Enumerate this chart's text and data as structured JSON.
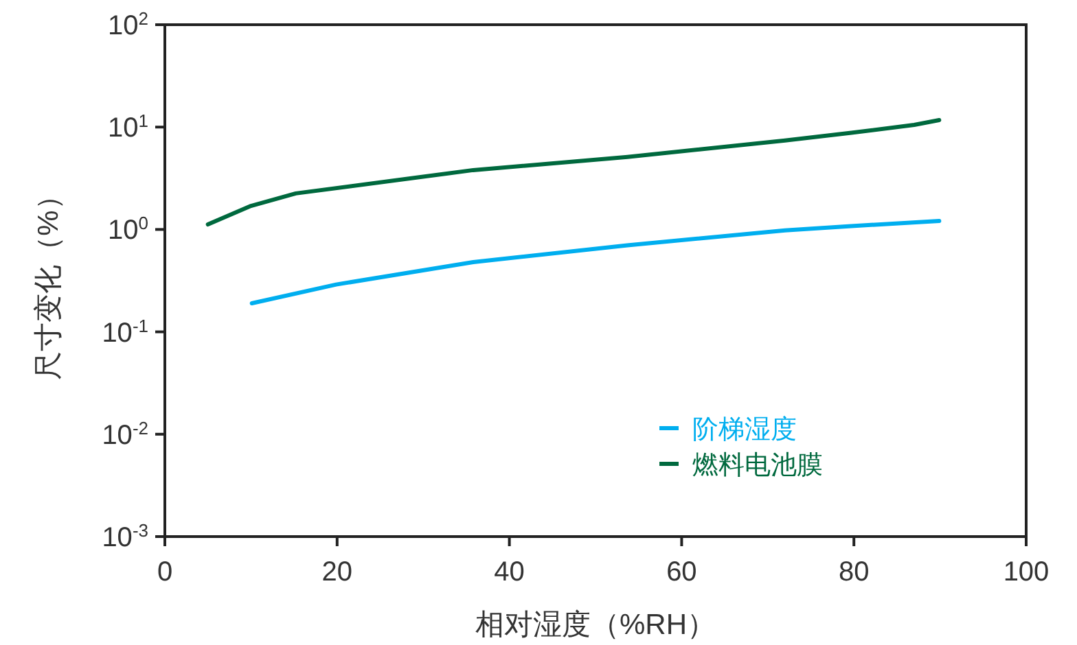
{
  "chart_data": {
    "type": "line",
    "xlabel": "相对湿度（%RH）",
    "ylabel": "尺寸变化（%）",
    "log": "y",
    "xlim": [
      0,
      100
    ],
    "xticks": [
      0,
      20,
      40,
      60,
      80,
      100
    ],
    "ylim": [
      0.001,
      100
    ],
    "yticks": [
      {
        "value": 0.001,
        "label": "10$^{-3}$"
      },
      {
        "value": 0.01,
        "label": "10$^{-2}$"
      },
      {
        "value": 0.1,
        "label": "10$^{-1}$"
      },
      {
        "value": 1,
        "label": "10$^{0}$"
      },
      {
        "value": 10,
        "label": "10$^{1}$"
      },
      {
        "value": 100,
        "label": "10$^{2}$"
      }
    ],
    "grid": false,
    "legend": "bottom right",
    "marker": "none",
    "line_style": "solid",
    "series": [
      {
        "name": "阶梯湿度",
        "color": "#00aeef",
        "x": [
          10.1,
          19.9,
          35.8,
          53.7,
          72,
          79.7,
          89.9
        ],
        "values": [
          0.19,
          0.29,
          0.48,
          0.7,
          0.98,
          1.08,
          1.21
        ]
      },
      {
        "name": "燃料电池膜",
        "color": "#00693e",
        "x": [
          5,
          10,
          15.2,
          35.8,
          53.7,
          72,
          79.7,
          87,
          89.9
        ],
        "values": [
          1.12,
          1.7,
          2.25,
          3.8,
          5.1,
          7.4,
          8.8,
          10.5,
          11.7
        ]
      }
    ]
  }
}
